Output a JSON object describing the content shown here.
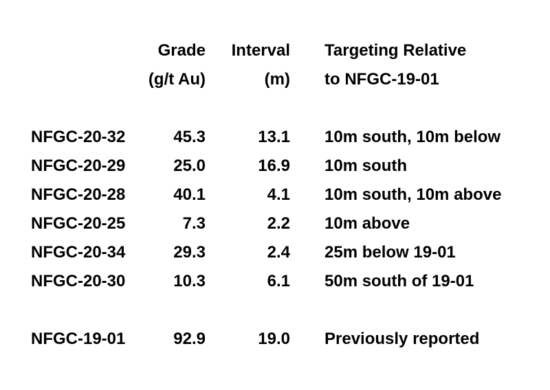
{
  "page": {
    "background_color": "#ffffff",
    "text_color": "#000000"
  },
  "table": {
    "header": {
      "hole_id_line1": "",
      "hole_id_line2": "",
      "grade_line1": "Grade",
      "grade_line2": "(g/t Au)",
      "interval_line1": "Interval",
      "interval_line2": "(m)",
      "targeting_line1": "Targeting Relative",
      "targeting_line2": "to NFGC-19-01"
    },
    "rows": [
      {
        "hole_id": "NFGC-20-32",
        "grade": "45.3",
        "interval": "13.1",
        "targeting": "10m south, 10m below"
      },
      {
        "hole_id": "NFGC-20-29",
        "grade": "25.0",
        "interval": "16.9",
        "targeting": "10m south"
      },
      {
        "hole_id": "NFGC-20-28",
        "grade": "40.1",
        "interval": "4.1",
        "targeting": "10m south, 10m above"
      },
      {
        "hole_id": "NFGC-20-25",
        "grade": "7.3",
        "interval": "2.2",
        "targeting": "10m above"
      },
      {
        "hole_id": "NFGC-20-34",
        "grade": "29.3",
        "interval": "2.4",
        "targeting": "25m below 19-01"
      },
      {
        "hole_id": "NFGC-20-30",
        "grade": "10.3",
        "interval": "6.1",
        "targeting": "50m south of 19-01"
      }
    ],
    "reference_row": {
      "hole_id": "NFGC-19-01",
      "grade": "92.9",
      "interval": "19.0",
      "targeting": "Previously reported"
    }
  },
  "chart_data": {
    "type": "table",
    "columns": [
      "",
      "Grade (g/t Au)",
      "Interval (m)",
      "Targeting Relative to NFGC-19-01"
    ],
    "rows": [
      [
        "NFGC-20-32",
        45.3,
        13.1,
        "10m south, 10m below"
      ],
      [
        "NFGC-20-29",
        25.0,
        16.9,
        "10m south"
      ],
      [
        "NFGC-20-28",
        40.1,
        4.1,
        "10m south, 10m above"
      ],
      [
        "NFGC-20-25",
        7.3,
        2.2,
        "10m above"
      ],
      [
        "NFGC-20-34",
        29.3,
        2.4,
        "25m below 19-01"
      ],
      [
        "NFGC-20-30",
        10.3,
        6.1,
        "50m south of 19-01"
      ],
      [
        "NFGC-19-01",
        92.9,
        19.0,
        "Previously reported"
      ]
    ]
  }
}
